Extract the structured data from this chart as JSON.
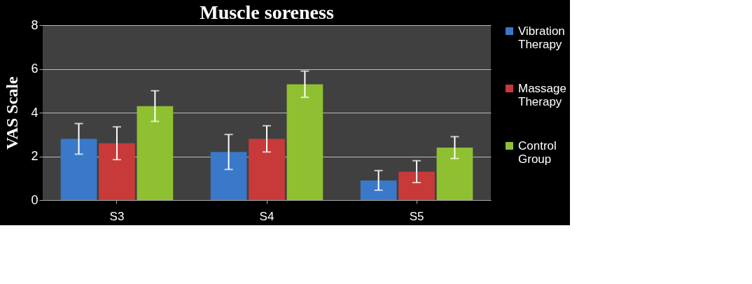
{
  "chart_data": {
    "type": "bar",
    "title": "Muscle soreness",
    "ylabel": "VAS Scale",
    "categories": [
      "S3",
      "S4",
      "S5"
    ],
    "series": [
      {
        "name": "Vibration Therapy",
        "color": "#3a78c9",
        "values": [
          2.8,
          2.2,
          0.9
        ],
        "errors": [
          0.7,
          0.8,
          0.45
        ]
      },
      {
        "name": "Massage Therapy",
        "color": "#c83a3a",
        "values": [
          2.6,
          2.8,
          1.3
        ],
        "errors": [
          0.75,
          0.6,
          0.5
        ]
      },
      {
        "name": "Control Group",
        "color": "#8fc031",
        "values": [
          4.3,
          5.3,
          2.4
        ],
        "errors": [
          0.7,
          0.6,
          0.5
        ]
      }
    ],
    "ylim": [
      0,
      8
    ],
    "yticks": [
      0,
      2,
      4,
      6,
      8
    ],
    "grid": "y",
    "legend": "right"
  }
}
